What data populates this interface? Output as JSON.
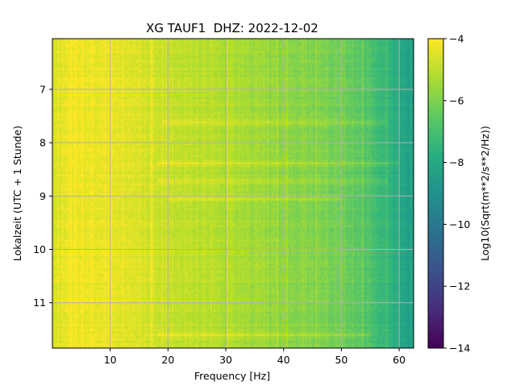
{
  "chart_data": {
    "type": "heatmap",
    "title": "XG TAUF1  DHZ: 2022-12-02",
    "xlabel": "Frequency [Hz]",
    "ylabel": "Lokalzeit (UTC + 1 Stunde)",
    "colorbar_label": "Log10(Sqrt(m**2/s**2/Hz))",
    "xlim": [
      0,
      62.5
    ],
    "ylim": [
      6.05,
      11.85
    ],
    "y_inverted": true,
    "x_ticks": [
      10,
      20,
      30,
      40,
      50,
      60
    ],
    "y_ticks": [
      7,
      8,
      9,
      10,
      11
    ],
    "color_range": [
      -14,
      -4
    ],
    "colorbar_ticks": [
      -4,
      -6,
      -8,
      -10,
      -12,
      -14
    ],
    "colormap": "viridis",
    "grid": true,
    "freq_profile": {
      "x": [
        0,
        1,
        3,
        8,
        15,
        20,
        25,
        30,
        35,
        40,
        45,
        50,
        55,
        58,
        60,
        62.5
      ],
      "values": [
        -4.7,
        -4.4,
        -4.2,
        -4.25,
        -4.5,
        -4.8,
        -5.0,
        -5.2,
        -5.4,
        -5.7,
        -5.9,
        -6.2,
        -6.8,
        -7.4,
        -7.9,
        -8.5
      ]
    },
    "bright_bands": [
      {
        "time": 7.62,
        "from_hz": 19,
        "to_hz": 58
      },
      {
        "time": 8.38,
        "from_hz": 18,
        "to_hz": 60
      },
      {
        "time": 8.72,
        "from_hz": 18,
        "to_hz": 58
      },
      {
        "time": 9.05,
        "from_hz": 20,
        "to_hz": 50
      },
      {
        "time": 11.6,
        "from_hz": 18,
        "to_hz": 55
      }
    ]
  }
}
